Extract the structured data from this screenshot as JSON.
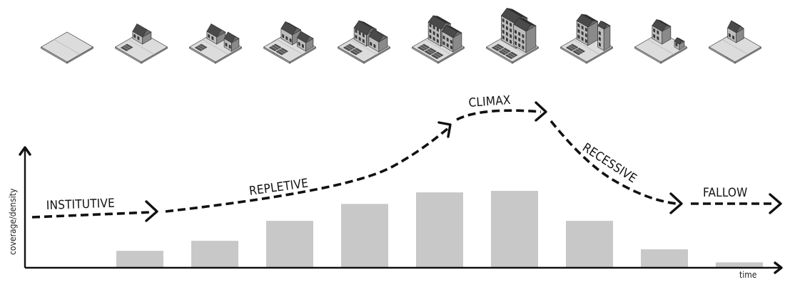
{
  "labels": {
    "y_axis": "coverage/density",
    "x_axis": "time"
  },
  "phases": [
    {
      "name": "institutive",
      "label": "INSTITUTIVE"
    },
    {
      "name": "repletive",
      "label": "REPLETIVE"
    },
    {
      "name": "climax",
      "label": "CLIMAX"
    },
    {
      "name": "recessive",
      "label": "RECESSIVE"
    },
    {
      "name": "fallow",
      "label": "FALLOW"
    }
  ],
  "bars": [
    {
      "value": 0
    },
    {
      "value": 0.22
    },
    {
      "value": 0.35
    },
    {
      "value": 0.61
    },
    {
      "value": 0.83
    },
    {
      "value": 0.98
    },
    {
      "value": 1.0
    },
    {
      "value": 0.61
    },
    {
      "value": 0.24
    },
    {
      "value": 0.07
    }
  ],
  "stages": [
    {
      "name": "empty-plot",
      "buildings": [],
      "subplots": 0
    },
    {
      "name": "stage-2",
      "buildings": [
        {
          "w": 16,
          "d": 14,
          "h": 10,
          "roof": 7
        }
      ],
      "subplots": 1
    },
    {
      "name": "stage-3",
      "buildings": [
        {
          "w": 16,
          "d": 14,
          "h": 10,
          "roof": 7
        },
        {
          "w": 12,
          "d": 12,
          "h": 12,
          "roof": 6
        }
      ],
      "subplots": 1
    },
    {
      "name": "stage-4",
      "buildings": [
        {
          "w": 18,
          "d": 14,
          "h": 14,
          "roof": 6
        },
        {
          "w": 14,
          "d": 12,
          "h": 12,
          "roof": 6
        }
      ],
      "subplots": 2
    },
    {
      "name": "stage-5",
      "buildings": [
        {
          "w": 20,
          "d": 16,
          "h": 16,
          "roof": 6
        },
        {
          "w": 16,
          "d": 14,
          "h": 14,
          "roof": 6
        }
      ],
      "subplots": 2
    },
    {
      "name": "stage-6",
      "buildings": [
        {
          "w": 20,
          "d": 16,
          "h": 24,
          "roof": 5
        },
        {
          "w": 18,
          "d": 14,
          "h": 20,
          "roof": 5
        }
      ],
      "subplots": 3
    },
    {
      "name": "stage-7",
      "buildings": [
        {
          "w": 24,
          "d": 18,
          "h": 34,
          "roof": 6
        },
        {
          "w": 20,
          "d": 16,
          "h": 30,
          "roof": 5
        }
      ],
      "subplots": 3
    },
    {
      "name": "stage-8",
      "buildings": [
        {
          "w": 18,
          "d": 16,
          "h": 26,
          "roof": 5
        },
        {
          "w": 10,
          "d": 10,
          "h": 30,
          "roof": 4
        }
      ],
      "subplots": 2
    },
    {
      "name": "stage-9",
      "buildings": [
        {
          "w": 16,
          "d": 14,
          "h": 18,
          "roof": 5
        },
        {
          "w": 8,
          "d": 8,
          "h": 8,
          "roof": 3
        }
      ],
      "subplots": 0
    },
    {
      "name": "stage-10",
      "buildings": [
        {
          "w": 14,
          "d": 12,
          "h": 14,
          "roof": 7
        }
      ],
      "subplots": 0
    }
  ]
}
